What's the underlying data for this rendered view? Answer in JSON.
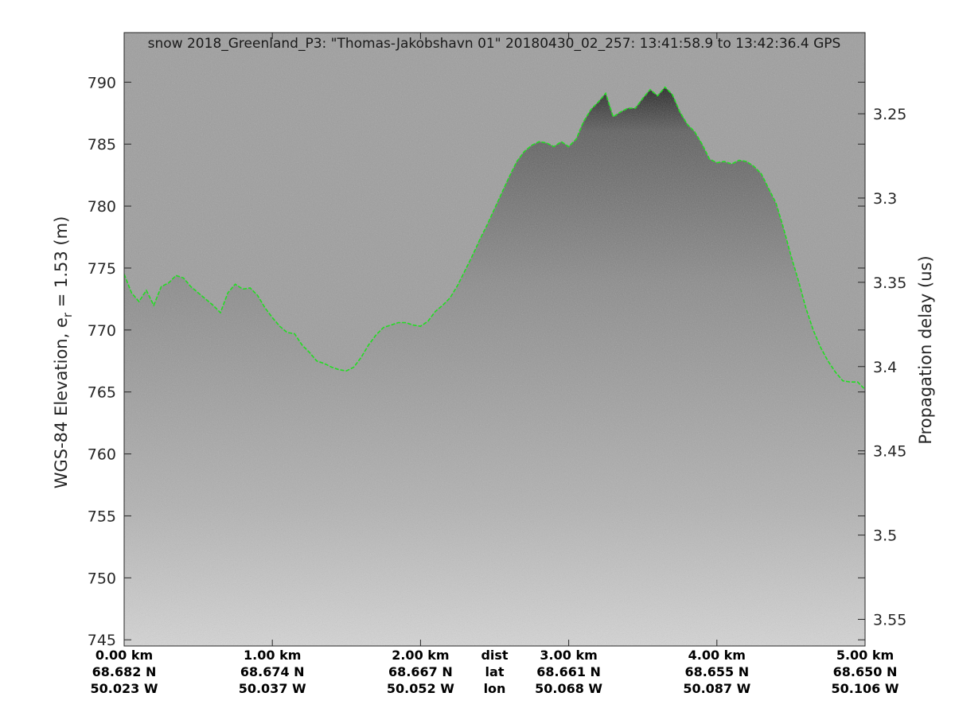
{
  "chart_data": {
    "type": "radar-echogram",
    "title": "snow 2018_Greenland_P3: \"Thomas-Jakobshavn 01\"  20180430_02_257: 13:41:58.9 to 13:42:36.4 GPS",
    "ylabel": "WGS-84 Elevation, e",
    "ylabel_sub": "r",
    "ylabel_suffix": " = 1.53 (m)",
    "y2label": "Propagation delay (us)",
    "xlim": [
      0,
      5.0
    ],
    "ylim": [
      744.5,
      794
    ],
    "yticks": [
      745,
      750,
      755,
      760,
      765,
      770,
      775,
      780,
      785,
      790
    ],
    "y2ticks": [
      {
        "label": "3.25",
        "elev": 787.45
      },
      {
        "label": "3.3",
        "elev": 780.65
      },
      {
        "label": "3.35",
        "elev": 773.85
      },
      {
        "label": "3.4",
        "elev": 767.05
      },
      {
        "label": "3.45",
        "elev": 760.25
      },
      {
        "label": "3.5",
        "elev": 753.45
      },
      {
        "label": "3.55",
        "elev": 746.65
      }
    ],
    "x_info": {
      "row_labels": [
        "dist",
        "lat",
        "lon"
      ],
      "row_label_position_km": 2.5,
      "ticks": [
        {
          "km": 0,
          "dist": "0.00 km",
          "lat": "68.682 N",
          "lon": "50.023 W"
        },
        {
          "km": 1,
          "dist": "1.00 km",
          "lat": "68.674 N",
          "lon": "50.037 W"
        },
        {
          "km": 2,
          "dist": "2.00 km",
          "lat": "68.667 N",
          "lon": "50.052 W"
        },
        {
          "km": 3,
          "dist": "3.00 km",
          "lat": "68.661 N",
          "lon": "50.068 W"
        },
        {
          "km": 4,
          "dist": "4.00 km",
          "lat": "68.655 N",
          "lon": "50.087 W"
        },
        {
          "km": 5,
          "dist": "5.00 km",
          "lat": "68.650 N",
          "lon": "50.106 W"
        }
      ]
    },
    "surface_series": {
      "color": "#22dd22",
      "points": [
        [
          0.0,
          774.5
        ],
        [
          0.05,
          773.0
        ],
        [
          0.1,
          772.3
        ],
        [
          0.15,
          773.2
        ],
        [
          0.2,
          772.0
        ],
        [
          0.25,
          773.5
        ],
        [
          0.3,
          773.8
        ],
        [
          0.35,
          774.4
        ],
        [
          0.4,
          774.2
        ],
        [
          0.45,
          773.5
        ],
        [
          0.5,
          773.0
        ],
        [
          0.55,
          772.5
        ],
        [
          0.6,
          772.0
        ],
        [
          0.65,
          771.4
        ],
        [
          0.7,
          773.0
        ],
        [
          0.75,
          773.7
        ],
        [
          0.8,
          773.3
        ],
        [
          0.85,
          773.4
        ],
        [
          0.9,
          772.8
        ],
        [
          0.95,
          771.8
        ],
        [
          1.0,
          771.0
        ],
        [
          1.05,
          770.3
        ],
        [
          1.1,
          769.8
        ],
        [
          1.15,
          769.7
        ],
        [
          1.2,
          768.8
        ],
        [
          1.25,
          768.2
        ],
        [
          1.3,
          767.5
        ],
        [
          1.35,
          767.3
        ],
        [
          1.4,
          767.0
        ],
        [
          1.45,
          766.8
        ],
        [
          1.5,
          766.7
        ],
        [
          1.55,
          767.0
        ],
        [
          1.6,
          767.8
        ],
        [
          1.65,
          768.8
        ],
        [
          1.7,
          769.6
        ],
        [
          1.75,
          770.2
        ],
        [
          1.8,
          770.4
        ],
        [
          1.85,
          770.6
        ],
        [
          1.9,
          770.6
        ],
        [
          1.95,
          770.4
        ],
        [
          2.0,
          770.3
        ],
        [
          2.05,
          770.7
        ],
        [
          2.1,
          771.5
        ],
        [
          2.15,
          772.0
        ],
        [
          2.2,
          772.6
        ],
        [
          2.25,
          773.6
        ],
        [
          2.3,
          774.8
        ],
        [
          2.35,
          776.0
        ],
        [
          2.4,
          777.3
        ],
        [
          2.45,
          778.5
        ],
        [
          2.5,
          779.8
        ],
        [
          2.55,
          781.1
        ],
        [
          2.6,
          782.4
        ],
        [
          2.65,
          783.6
        ],
        [
          2.7,
          784.4
        ],
        [
          2.75,
          784.9
        ],
        [
          2.8,
          785.2
        ],
        [
          2.85,
          785.1
        ],
        [
          2.9,
          784.8
        ],
        [
          2.95,
          785.2
        ],
        [
          3.0,
          784.8
        ],
        [
          3.05,
          785.4
        ],
        [
          3.1,
          786.8
        ],
        [
          3.15,
          787.8
        ],
        [
          3.2,
          788.4
        ],
        [
          3.25,
          789.1
        ],
        [
          3.3,
          787.2
        ],
        [
          3.35,
          787.6
        ],
        [
          3.4,
          787.9
        ],
        [
          3.45,
          787.9
        ],
        [
          3.5,
          788.7
        ],
        [
          3.55,
          789.4
        ],
        [
          3.6,
          788.9
        ],
        [
          3.65,
          789.6
        ],
        [
          3.7,
          789.0
        ],
        [
          3.75,
          787.6
        ],
        [
          3.8,
          786.6
        ],
        [
          3.85,
          786.0
        ],
        [
          3.9,
          785.0
        ],
        [
          3.95,
          783.8
        ],
        [
          4.0,
          783.5
        ],
        [
          4.05,
          783.6
        ],
        [
          4.1,
          783.4
        ],
        [
          4.15,
          783.7
        ],
        [
          4.2,
          783.6
        ],
        [
          4.25,
          783.2
        ],
        [
          4.3,
          782.6
        ],
        [
          4.35,
          781.4
        ],
        [
          4.4,
          780.2
        ],
        [
          4.45,
          778.2
        ],
        [
          4.5,
          776.0
        ],
        [
          4.55,
          774.0
        ],
        [
          4.6,
          771.8
        ],
        [
          4.65,
          770.0
        ],
        [
          4.7,
          768.6
        ],
        [
          4.75,
          767.5
        ],
        [
          4.8,
          766.6
        ],
        [
          4.85,
          765.9
        ],
        [
          4.9,
          765.8
        ],
        [
          4.95,
          765.8
        ],
        [
          5.0,
          765.2
        ]
      ]
    }
  }
}
